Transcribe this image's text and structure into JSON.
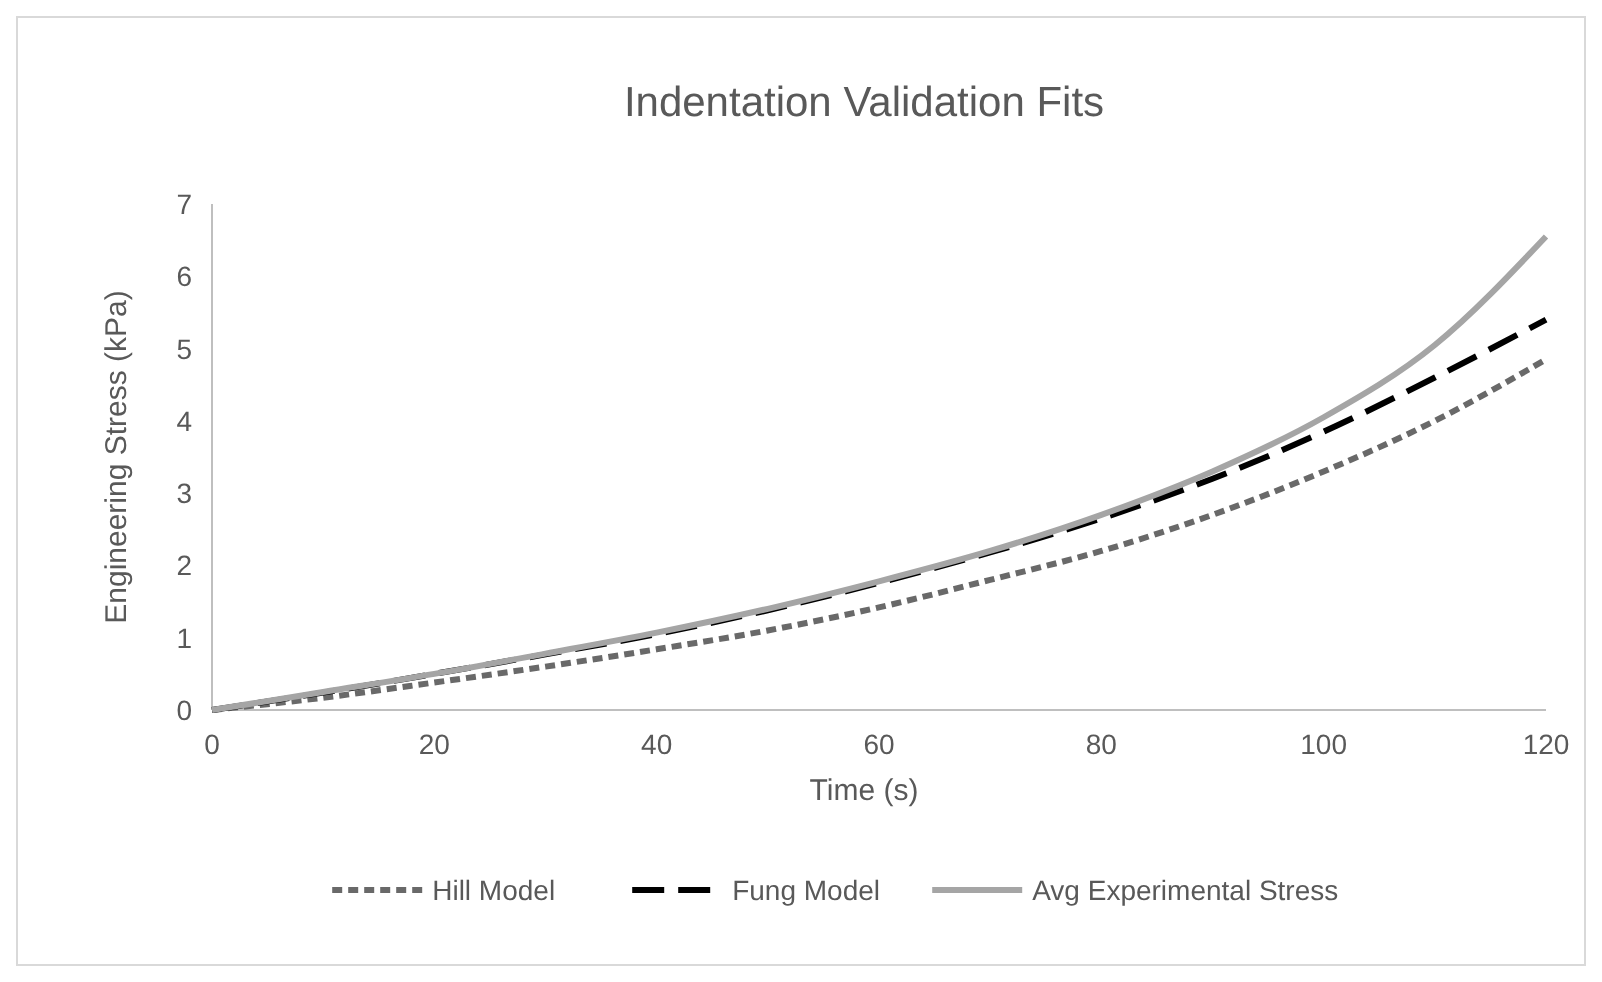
{
  "chart_data": {
    "type": "line",
    "title": "Indentation Validation Fits",
    "xlabel": "Time (s)",
    "ylabel": "Engineering Stress (kPa)",
    "x": [
      0,
      10,
      20,
      30,
      40,
      50,
      60,
      70,
      80,
      90,
      100,
      110,
      120
    ],
    "xlim": [
      0,
      120
    ],
    "xticks": [
      0,
      20,
      40,
      60,
      80,
      100,
      120
    ],
    "ylim": [
      0,
      7
    ],
    "yticks": [
      0,
      1,
      2,
      3,
      4,
      5,
      6,
      7
    ],
    "grid": false,
    "legend": "bottom",
    "marker": "none",
    "series": [
      {
        "name": "Hill Model",
        "color": "#696969",
        "line_style": "dotted",
        "values": [
          0,
          0.17,
          0.38,
          0.6,
          0.84,
          1.1,
          1.42,
          1.8,
          2.2,
          2.7,
          3.3,
          4.0,
          4.85
        ]
      },
      {
        "name": "Fung Model",
        "color": "#000000",
        "line_style": "dashed",
        "values": [
          0,
          0.24,
          0.5,
          0.77,
          1.05,
          1.38,
          1.76,
          2.18,
          2.65,
          3.2,
          3.85,
          4.6,
          5.4
        ]
      },
      {
        "name": "Avg Experimental Stress",
        "color": "#a5a5a5",
        "line_style": "solid",
        "values": [
          0,
          0.25,
          0.5,
          0.78,
          1.07,
          1.4,
          1.78,
          2.2,
          2.7,
          3.3,
          4.05,
          5.05,
          6.55
        ]
      }
    ]
  }
}
